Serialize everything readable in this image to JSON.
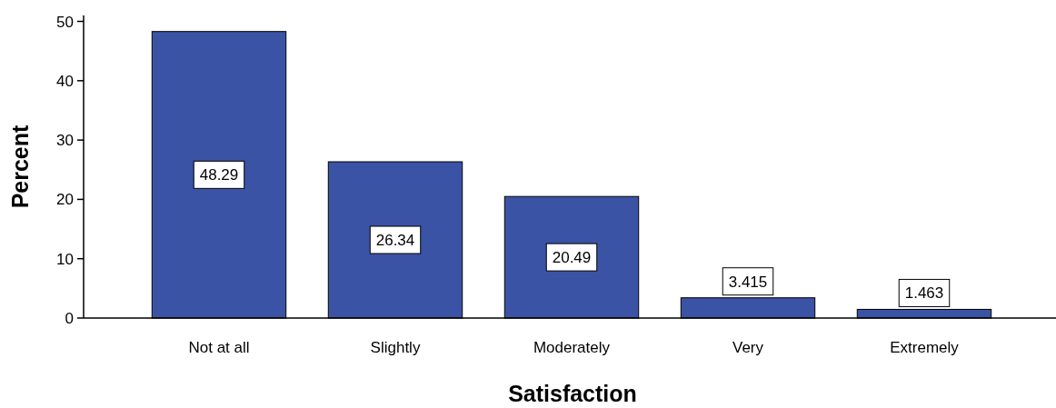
{
  "chart_data": {
    "type": "bar",
    "xlabel": "Satisfaction",
    "ylabel": "Percent",
    "categories": [
      "Not at all",
      "Slightly",
      "Moderately",
      "Very",
      "Extremely"
    ],
    "values": [
      48.29,
      26.34,
      20.49,
      3.415,
      1.463
    ],
    "color": "#3a53a4",
    "ylim": [
      0,
      51
    ],
    "yticks": [
      0,
      10,
      20,
      30,
      40,
      50
    ],
    "data_labels": true,
    "grid": false
  }
}
